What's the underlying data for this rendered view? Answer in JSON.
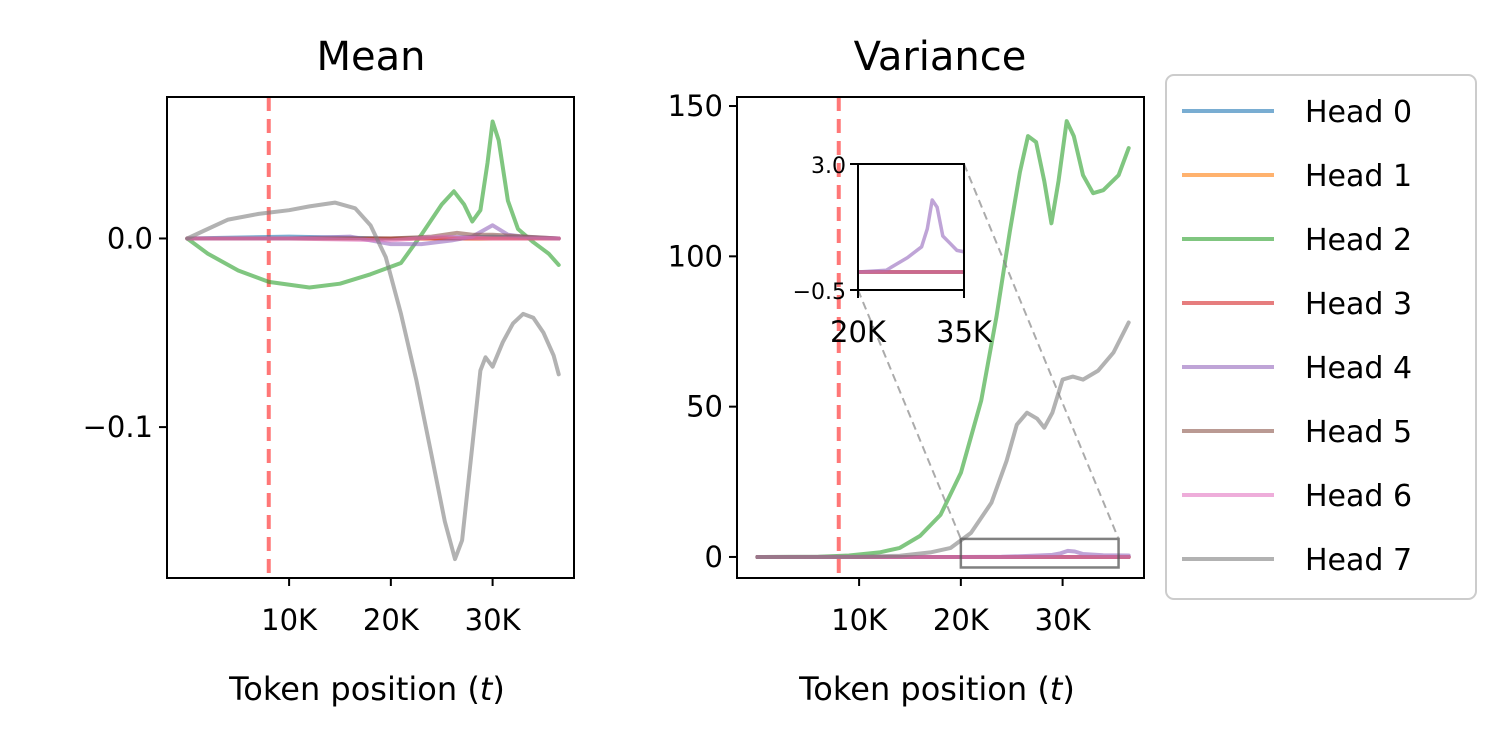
{
  "chart_data": [
    {
      "type": "line",
      "title": "Mean",
      "xlabel": "Token position (t)",
      "xlim": [
        -2000,
        38000
      ],
      "ylim": [
        -0.18,
        0.075
      ],
      "xticks": [
        10000,
        20000,
        30000
      ],
      "xtick_labels": [
        "10K",
        "20K",
        "30K"
      ],
      "yticks": [
        0.0,
        -0.1
      ],
      "ytick_labels": [
        "0.0",
        "−0.1"
      ],
      "vline": 8000,
      "series": [
        {
          "name": "Head 0",
          "color": "#1f77b4",
          "points": [
            [
              0,
              0
            ],
            [
              10000,
              0.001
            ],
            [
              20000,
              0
            ],
            [
              30000,
              0.001
            ],
            [
              36500,
              0
            ]
          ]
        },
        {
          "name": "Head 1",
          "color": "#ff7f0e",
          "points": [
            [
              0,
              0
            ],
            [
              10000,
              0
            ],
            [
              20000,
              0
            ],
            [
              30000,
              0
            ],
            [
              36500,
              0
            ]
          ]
        },
        {
          "name": "Head 2",
          "color": "#2ca02c",
          "points": [
            [
              0,
              0
            ],
            [
              2000,
              -0.008
            ],
            [
              5000,
              -0.017
            ],
            [
              8000,
              -0.023
            ],
            [
              12000,
              -0.026
            ],
            [
              15000,
              -0.024
            ],
            [
              18000,
              -0.019
            ],
            [
              21000,
              -0.013
            ],
            [
              23000,
              0.002
            ],
            [
              25000,
              0.018
            ],
            [
              26200,
              0.025
            ],
            [
              27200,
              0.018
            ],
            [
              28000,
              0.009
            ],
            [
              28800,
              0.015
            ],
            [
              29500,
              0.04
            ],
            [
              30000,
              0.062
            ],
            [
              30600,
              0.052
            ],
            [
              31500,
              0.02
            ],
            [
              32500,
              0.005
            ],
            [
              34000,
              -0.002
            ],
            [
              35500,
              -0.008
            ],
            [
              36500,
              -0.014
            ]
          ]
        },
        {
          "name": "Head 3",
          "color": "#d62728",
          "points": [
            [
              0,
              0
            ],
            [
              10000,
              0
            ],
            [
              20000,
              0
            ],
            [
              30000,
              0
            ],
            [
              36500,
              0
            ]
          ]
        },
        {
          "name": "Head 4",
          "color": "#9467bd",
          "points": [
            [
              0,
              0
            ],
            [
              10000,
              0
            ],
            [
              16000,
              0.001
            ],
            [
              20000,
              -0.003
            ],
            [
              23000,
              -0.003
            ],
            [
              26000,
              -0.001
            ],
            [
              28000,
              0.001
            ],
            [
              30000,
              0.007
            ],
            [
              31500,
              0.002
            ],
            [
              33000,
              0.001
            ],
            [
              36500,
              0
            ]
          ]
        },
        {
          "name": "Head 5",
          "color": "#8c564b",
          "points": [
            [
              0,
              0
            ],
            [
              10000,
              0
            ],
            [
              20000,
              0
            ],
            [
              24000,
              0.001
            ],
            [
              26500,
              0.003
            ],
            [
              28000,
              0.002
            ],
            [
              30000,
              0.002
            ],
            [
              36500,
              0
            ]
          ]
        },
        {
          "name": "Head 6",
          "color": "#e377c2",
          "points": [
            [
              0,
              0
            ],
            [
              10000,
              0
            ],
            [
              20000,
              -0.001
            ],
            [
              25000,
              0.001
            ],
            [
              30000,
              0
            ],
            [
              36500,
              0
            ]
          ]
        },
        {
          "name": "Head 7",
          "color": "#7f7f7f",
          "points": [
            [
              0,
              0
            ],
            [
              2000,
              0.005
            ],
            [
              4000,
              0.01
            ],
            [
              7000,
              0.013
            ],
            [
              10000,
              0.015
            ],
            [
              12000,
              0.017
            ],
            [
              14500,
              0.019
            ],
            [
              16500,
              0.016
            ],
            [
              18000,
              0.007
            ],
            [
              19500,
              -0.01
            ],
            [
              21000,
              -0.04
            ],
            [
              22500,
              -0.075
            ],
            [
              24000,
              -0.115
            ],
            [
              25300,
              -0.15
            ],
            [
              26300,
              -0.17
            ],
            [
              27000,
              -0.16
            ],
            [
              28000,
              -0.11
            ],
            [
              28800,
              -0.07
            ],
            [
              29300,
              -0.063
            ],
            [
              30000,
              -0.068
            ],
            [
              31000,
              -0.055
            ],
            [
              32000,
              -0.045
            ],
            [
              33000,
              -0.04
            ],
            [
              34000,
              -0.042
            ],
            [
              35000,
              -0.05
            ],
            [
              36000,
              -0.062
            ],
            [
              36500,
              -0.072
            ]
          ]
        }
      ]
    },
    {
      "type": "line",
      "title": "Variance",
      "xlabel": "Token position (t)",
      "xlim": [
        -2000,
        38000
      ],
      "ylim": [
        -7,
        153
      ],
      "xticks": [
        10000,
        20000,
        30000
      ],
      "xtick_labels": [
        "10K",
        "20K",
        "30K"
      ],
      "yticks": [
        150,
        100,
        50,
        0
      ],
      "ytick_labels": [
        "150",
        "100",
        "50",
        "0"
      ],
      "vline": 8000,
      "zoom_box": {
        "x": [
          20000,
          35500
        ],
        "y": [
          -3.5,
          6
        ]
      },
      "inset": {
        "xlim": [
          20000,
          35000
        ],
        "ylim": [
          -0.5,
          3.0
        ],
        "xticks": [
          20000,
          35000
        ],
        "xtick_labels": [
          "20K",
          "35K"
        ],
        "yticks": [
          3.0,
          -0.5
        ],
        "ytick_labels": [
          "3.0",
          "−0.5"
        ]
      },
      "series": [
        {
          "name": "Head 0",
          "color": "#1f77b4",
          "points": [
            [
              0,
              0
            ],
            [
              36500,
              0
            ]
          ]
        },
        {
          "name": "Head 1",
          "color": "#ff7f0e",
          "points": [
            [
              0,
              0
            ],
            [
              36500,
              0
            ]
          ]
        },
        {
          "name": "Head 2",
          "color": "#2ca02c",
          "points": [
            [
              0,
              0
            ],
            [
              6000,
              0.1
            ],
            [
              9000,
              0.5
            ],
            [
              12000,
              1.5
            ],
            [
              14000,
              3
            ],
            [
              16000,
              7
            ],
            [
              18000,
              14
            ],
            [
              20000,
              28
            ],
            [
              22000,
              52
            ],
            [
              23500,
              80
            ],
            [
              24800,
              108
            ],
            [
              25800,
              128
            ],
            [
              26600,
              140
            ],
            [
              27400,
              138
            ],
            [
              28200,
              125
            ],
            [
              28900,
              111
            ],
            [
              29600,
              125
            ],
            [
              30400,
              145
            ],
            [
              31100,
              140
            ],
            [
              32000,
              127
            ],
            [
              33000,
              121
            ],
            [
              34000,
              122
            ],
            [
              35500,
              127
            ],
            [
              36500,
              136
            ]
          ]
        },
        {
          "name": "Head 3",
          "color": "#d62728",
          "points": [
            [
              0,
              0
            ],
            [
              36500,
              0
            ]
          ]
        },
        {
          "name": "Head 4",
          "color": "#9467bd",
          "points": [
            [
              0,
              0
            ],
            [
              20000,
              0
            ],
            [
              24000,
              0.05
            ],
            [
              27000,
              0.4
            ],
            [
              29000,
              0.7
            ],
            [
              29800,
              1.2
            ],
            [
              30500,
              2.0
            ],
            [
              31200,
              1.8
            ],
            [
              32000,
              1.0
            ],
            [
              33000,
              0.8
            ],
            [
              34000,
              0.6
            ],
            [
              36500,
              0.5
            ]
          ]
        },
        {
          "name": "Head 5",
          "color": "#8c564b",
          "points": [
            [
              0,
              0
            ],
            [
              36500,
              0
            ]
          ]
        },
        {
          "name": "Head 6",
          "color": "#e377c2",
          "points": [
            [
              0,
              0
            ],
            [
              36500,
              0
            ]
          ]
        },
        {
          "name": "Head 7",
          "color": "#7f7f7f",
          "points": [
            [
              0,
              0
            ],
            [
              10000,
              0.1
            ],
            [
              14000,
              0.4
            ],
            [
              17000,
              1.5
            ],
            [
              19000,
              3
            ],
            [
              21000,
              8
            ],
            [
              23000,
              18
            ],
            [
              24500,
              32
            ],
            [
              25500,
              44
            ],
            [
              26500,
              48
            ],
            [
              27500,
              46
            ],
            [
              28200,
              43
            ],
            [
              29000,
              48
            ],
            [
              30000,
              59
            ],
            [
              31000,
              60
            ],
            [
              32000,
              59
            ],
            [
              33500,
              62
            ],
            [
              35000,
              68
            ],
            [
              36500,
              78
            ]
          ]
        }
      ]
    }
  ],
  "legend": [
    {
      "label": "Head 0",
      "color": "#1f77b4"
    },
    {
      "label": "Head 1",
      "color": "#ff7f0e"
    },
    {
      "label": "Head 2",
      "color": "#2ca02c"
    },
    {
      "label": "Head 3",
      "color": "#d62728"
    },
    {
      "label": "Head 4",
      "color": "#9467bd"
    },
    {
      "label": "Head 5",
      "color": "#8c564b"
    },
    {
      "label": "Head 6",
      "color": "#e377c2"
    },
    {
      "label": "Head 7",
      "color": "#7f7f7f"
    }
  ],
  "vline_color": "#ff5555"
}
